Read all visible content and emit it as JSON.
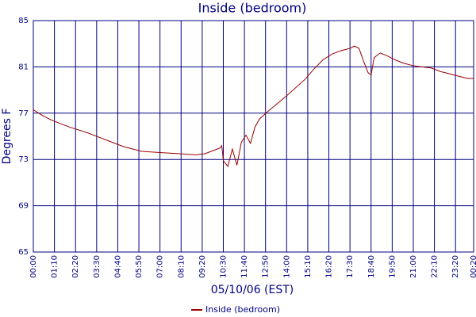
{
  "chart_data": {
    "type": "line",
    "title": "Inside (bedroom)",
    "x_label": "05/10/06 (EST)",
    "y_label": "Degrees F",
    "x": [
      0,
      30,
      60,
      120,
      180,
      240,
      300,
      360,
      420,
      480,
      540,
      570,
      600,
      620,
      625,
      630,
      645,
      660,
      675,
      690,
      705,
      720,
      735,
      750,
      780,
      840,
      900,
      930,
      960,
      990,
      1020,
      1050,
      1065,
      1080,
      1095,
      1110,
      1120,
      1130,
      1150,
      1170,
      1200,
      1230,
      1260,
      1290,
      1320,
      1350,
      1380,
      1410,
      1440,
      1460
    ],
    "series": [
      {
        "name": "Inside (bedroom)",
        "color": "#990000",
        "values": [
          77.3,
          76.8,
          76.4,
          75.8,
          75.3,
          74.7,
          74.1,
          73.7,
          73.6,
          73.5,
          73.4,
          73.5,
          73.8,
          74.0,
          74.2,
          72.9,
          72.4,
          73.9,
          72.5,
          74.5,
          75.1,
          74.4,
          75.8,
          76.5,
          77.2,
          78.5,
          79.9,
          80.8,
          81.6,
          82.1,
          82.4,
          82.6,
          82.8,
          82.6,
          81.5,
          80.5,
          80.3,
          81.8,
          82.2,
          82.0,
          81.6,
          81.3,
          81.1,
          81.0,
          80.9,
          80.6,
          80.4,
          80.2,
          80.0,
          80.0
        ]
      }
    ],
    "xlim": [
      0,
      1460
    ],
    "xticks": [
      {
        "value": 0,
        "label": "00:00"
      },
      {
        "value": 70,
        "label": "01:10"
      },
      {
        "value": 140,
        "label": "02:20"
      },
      {
        "value": 210,
        "label": "03:30"
      },
      {
        "value": 280,
        "label": "04:40"
      },
      {
        "value": 350,
        "label": "05:50"
      },
      {
        "value": 420,
        "label": "07:00"
      },
      {
        "value": 490,
        "label": "08:10"
      },
      {
        "value": 560,
        "label": "09:20"
      },
      {
        "value": 630,
        "label": "10:30"
      },
      {
        "value": 700,
        "label": "11:40"
      },
      {
        "value": 770,
        "label": "12:50"
      },
      {
        "value": 840,
        "label": "14:00"
      },
      {
        "value": 910,
        "label": "15:10"
      },
      {
        "value": 980,
        "label": "16:20"
      },
      {
        "value": 1050,
        "label": "17:30"
      },
      {
        "value": 1120,
        "label": "18:40"
      },
      {
        "value": 1190,
        "label": "19:50"
      },
      {
        "value": 1260,
        "label": "21:00"
      },
      {
        "value": 1330,
        "label": "22:10"
      },
      {
        "value": 1400,
        "label": "23:20"
      },
      {
        "value": 1460,
        "label": "00:20"
      }
    ],
    "ylim": [
      65,
      85
    ],
    "yticks": [
      65,
      69,
      73,
      77,
      81,
      85
    ],
    "grid": true,
    "grid_color": "#000080",
    "legend": "bottom"
  }
}
